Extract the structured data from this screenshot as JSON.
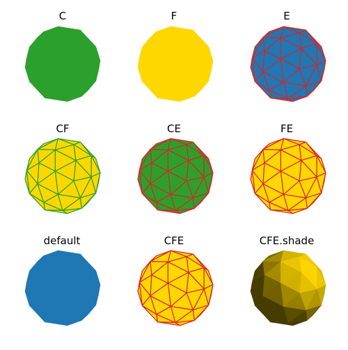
{
  "panels": [
    {
      "title": "C",
      "face": "#2ca02c",
      "edge": null,
      "shade": false
    },
    {
      "title": "F",
      "face": "#ffd700",
      "edge": null,
      "shade": false
    },
    {
      "title": "E",
      "face": "#1f77b4",
      "edge": "#d62728",
      "shade": false
    },
    {
      "title": "CF",
      "face": "#ffd700",
      "edge": "#2ca02c",
      "shade": false
    },
    {
      "title": "CE",
      "face": "#2ca02c",
      "edge": "#d62728",
      "shade": false
    },
    {
      "title": "FE",
      "face": "#ffd700",
      "edge": "#d62728",
      "shade": false
    },
    {
      "title": "default",
      "face": "#1f77b4",
      "edge": null,
      "shade": false
    },
    {
      "title": "CFE",
      "face": "#ffd700",
      "edge": "#d62728",
      "shade": false
    },
    {
      "title": "CFE.shade",
      "face": "#ffd700",
      "edge": null,
      "shade": true
    }
  ]
}
